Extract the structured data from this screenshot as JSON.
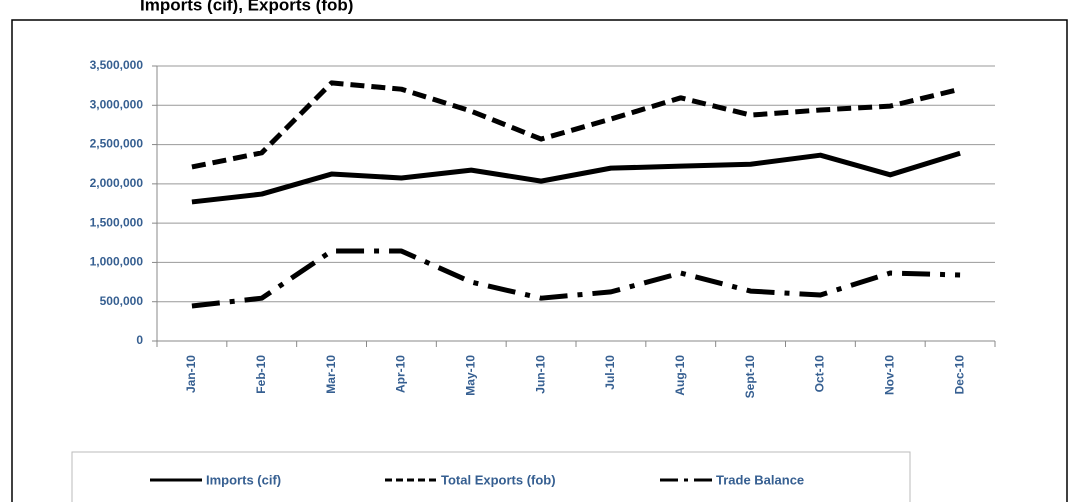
{
  "chart_data": {
    "type": "line",
    "title": "Imports (cif), Exports (fob)",
    "categories": [
      "Jan-10",
      "Feb-10",
      "Mar-10",
      "Apr-10",
      "May-10",
      "Jun-10",
      "Jul-10",
      "Aug-10",
      "Sept-10",
      "Oct-10",
      "Nov-10",
      "Dec-10"
    ],
    "series": [
      {
        "name": "Imports (cif)",
        "color": "#000000",
        "dash": "solid",
        "values": [
          1770000,
          1870000,
          2125000,
          2075000,
          2175000,
          2035000,
          2200000,
          2225000,
          2250000,
          2365000,
          2115000,
          2390000
        ]
      },
      {
        "name": "Total Exports (fob)",
        "color": "#000000",
        "dash": "dashed",
        "values": [
          2215000,
          2395000,
          3285000,
          3205000,
          2925000,
          2570000,
          2825000,
          3095000,
          2875000,
          2940000,
          2990000,
          3205000
        ]
      },
      {
        "name": "Trade Balance",
        "color": "#000000",
        "dash": "dashdot",
        "values": [
          445000,
          545000,
          1145000,
          1145000,
          750000,
          545000,
          625000,
          865000,
          635000,
          585000,
          865000,
          840000
        ]
      }
    ],
    "ylim": [
      0,
      3500000
    ],
    "yticks": [
      0,
      {
        "value": 500000,
        "label": "500,000"
      },
      {
        "value": 1000000,
        "label": "1,000,000"
      },
      {
        "value": 1500000,
        "label": "1,500,000"
      },
      {
        "value": 2000000,
        "label": "2,000,000"
      },
      {
        "value": 2500000,
        "label": "2,500,000"
      },
      {
        "value": 3000000,
        "label": "3,000,000"
      },
      {
        "value": 3500000,
        "label": "3,500,000"
      }
    ],
    "grid": true,
    "legend": "bottom"
  }
}
